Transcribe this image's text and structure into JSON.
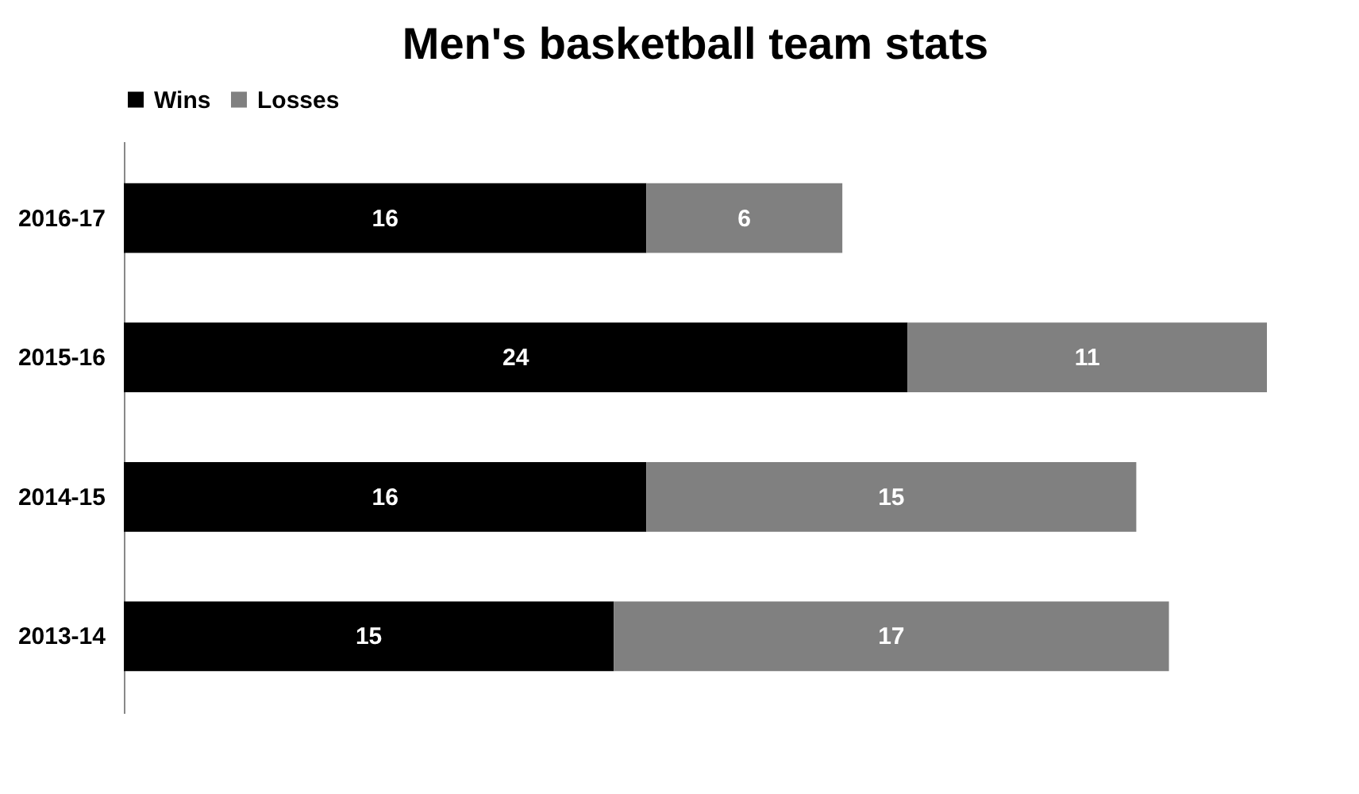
{
  "chart_data": {
    "type": "bar",
    "title": "Men's basketball team stats",
    "orientation": "horizontal",
    "stacked": true,
    "categories": [
      "2016-17",
      "2015-16",
      "2014-15",
      "2013-14"
    ],
    "series": [
      {
        "name": "Wins",
        "color": "#000000",
        "values": [
          16,
          24,
          16,
          15
        ]
      },
      {
        "name": "Losses",
        "color": "#808080",
        "values": [
          6,
          11,
          15,
          17
        ]
      }
    ],
    "data_labels": true,
    "legend": "top",
    "grid": false
  }
}
